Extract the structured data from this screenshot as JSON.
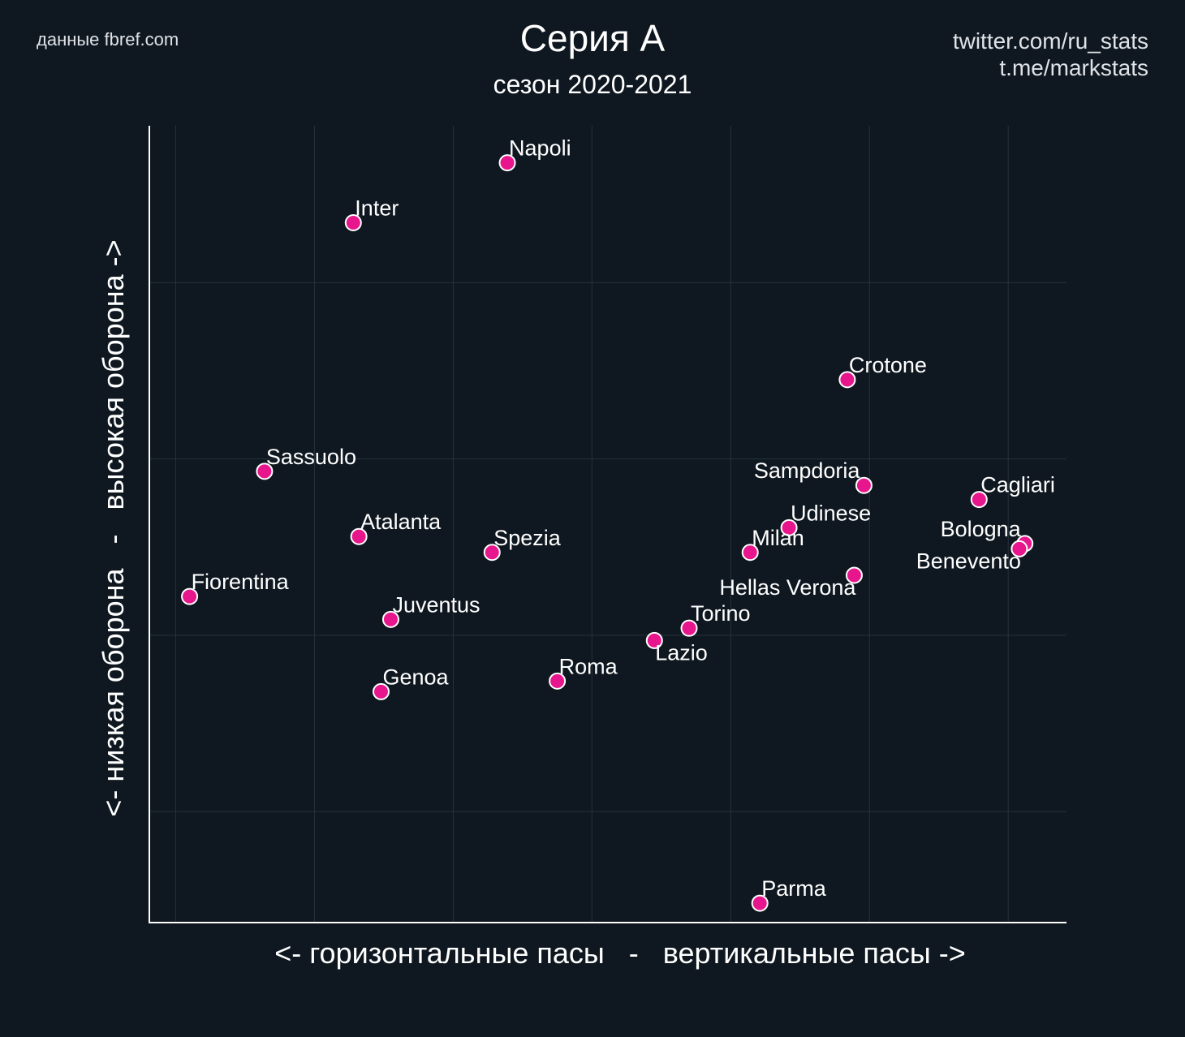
{
  "header": {
    "source": "данные fbref.com",
    "title": "Серия А",
    "subtitle": "сезон 2020-2021",
    "credits": [
      "twitter.com/ru_stats",
      "t.me/markstats"
    ]
  },
  "colors": {
    "background": "#0f1820",
    "grid": "#26313b",
    "axis": "#ffffff",
    "point_fill": "#e8168c",
    "point_stroke": "#ffffff",
    "text": "#ffffff"
  },
  "chart_data": {
    "type": "scatter",
    "title": "Серия А",
    "subtitle": "сезон 2020-2021",
    "xlabel": "<- горизонтальные пасы   -   вертикальные пасы ->",
    "ylabel": "<- низкая оборона   -   высокая оборона ->",
    "x_ticks_shown": false,
    "y_ticks_shown": false,
    "grid": true,
    "xlim": [
      0.81,
      7.42
    ],
    "ylim": [
      0.37,
      4.89
    ],
    "x_gridlines": [
      1,
      2,
      3,
      4,
      5,
      6,
      7
    ],
    "y_gridlines": [
      1,
      2,
      3,
      4
    ],
    "units_note": "no numeric ticks shown; values in relative gridline units",
    "points": [
      {
        "team": "Napoli",
        "x": 3.39,
        "y": 4.68,
        "label_pos": "above-right"
      },
      {
        "team": "Inter",
        "x": 2.28,
        "y": 4.34,
        "label_pos": "above-right"
      },
      {
        "team": "Crotone",
        "x": 5.84,
        "y": 3.45,
        "label_pos": "above-right"
      },
      {
        "team": "Sassuolo",
        "x": 1.64,
        "y": 2.93,
        "label_pos": "above-right"
      },
      {
        "team": "Sampdoria",
        "x": 5.96,
        "y": 2.85,
        "label_pos": "above-left"
      },
      {
        "team": "Cagliari",
        "x": 6.79,
        "y": 2.77,
        "label_pos": "above-right"
      },
      {
        "team": "Udinese",
        "x": 5.42,
        "y": 2.61,
        "label_pos": "above-right"
      },
      {
        "team": "Atalanta",
        "x": 2.32,
        "y": 2.56,
        "label_pos": "above-right"
      },
      {
        "team": "Bologna",
        "x": 7.12,
        "y": 2.52,
        "label_pos": "above-left"
      },
      {
        "team": "Benevento",
        "x": 7.08,
        "y": 2.49,
        "label_pos": "below-left"
      },
      {
        "team": "Spezia",
        "x": 3.28,
        "y": 2.47,
        "label_pos": "above-right"
      },
      {
        "team": "Milan",
        "x": 5.14,
        "y": 2.47,
        "label_pos": "above-right"
      },
      {
        "team": "Hellas Verona",
        "x": 5.89,
        "y": 2.34,
        "label_pos": "below-left"
      },
      {
        "team": "Fiorentina",
        "x": 1.1,
        "y": 2.22,
        "label_pos": "above-right"
      },
      {
        "team": "Juventus",
        "x": 2.55,
        "y": 2.09,
        "label_pos": "above-right"
      },
      {
        "team": "Torino",
        "x": 4.7,
        "y": 2.04,
        "label_pos": "above-right"
      },
      {
        "team": "Lazio",
        "x": 4.45,
        "y": 1.97,
        "label_pos": "below-right"
      },
      {
        "team": "Roma",
        "x": 3.75,
        "y": 1.74,
        "label_pos": "above-right"
      },
      {
        "team": "Genoa",
        "x": 2.48,
        "y": 1.68,
        "label_pos": "above-right"
      },
      {
        "team": "Parma",
        "x": 5.21,
        "y": 0.48,
        "label_pos": "above-right"
      }
    ]
  }
}
